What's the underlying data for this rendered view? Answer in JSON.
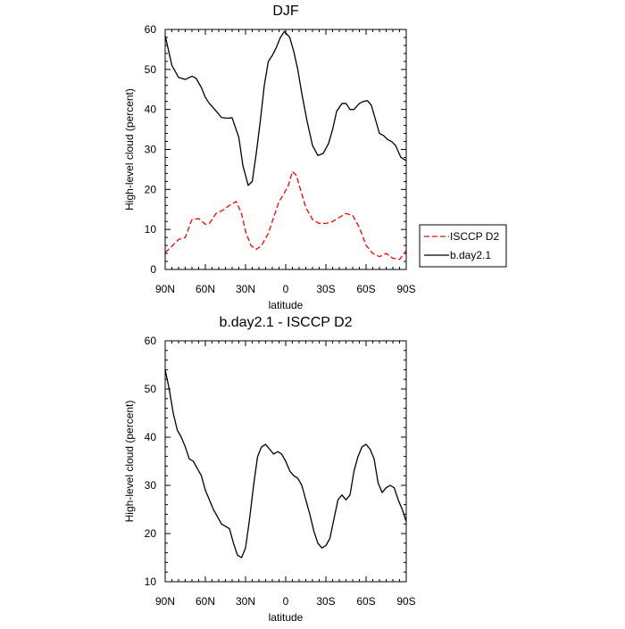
{
  "chart_data": [
    {
      "type": "line",
      "title": "DJF",
      "xlabel": "latitude",
      "ylabel": "High-level cloud (percent)",
      "xlim": [
        90,
        -90
      ],
      "ylim": [
        0,
        60
      ],
      "xtick_values": [
        90,
        60,
        30,
        0,
        -30,
        -60,
        -90
      ],
      "xtick_labels": [
        "90N",
        "60N",
        "30N",
        "0",
        "30S",
        "60S",
        "90S"
      ],
      "ytick_values": [
        0,
        10,
        20,
        30,
        40,
        50,
        60
      ],
      "ytick_labels": [
        "0",
        "10",
        "20",
        "30",
        "40",
        "50",
        "60"
      ],
      "legend_position": "right",
      "series": [
        {
          "name": "ISCCP D2",
          "color": "#ff0000",
          "dash": "dashed",
          "x": [
            90,
            85,
            80,
            75,
            70,
            65,
            60,
            57,
            52,
            47,
            42,
            37,
            33,
            30,
            26,
            22,
            18,
            13,
            9,
            5,
            2,
            -2,
            -5,
            -8,
            -11,
            -15,
            -20,
            -25,
            -30,
            -35,
            -40,
            -45,
            -50,
            -55,
            -60,
            -65,
            -70,
            -75,
            -80,
            -85,
            -90
          ],
          "y": [
            4.2,
            5.8,
            7.5,
            8.0,
            12.5,
            12.7,
            11.3,
            11.5,
            14.0,
            14.8,
            16.0,
            17.0,
            14.0,
            9.5,
            6.0,
            5.0,
            6.0,
            9.0,
            13.0,
            17.0,
            18.5,
            21.0,
            24.5,
            23.5,
            20.0,
            15.5,
            12.5,
            11.5,
            11.5,
            12.0,
            13.0,
            14.0,
            13.5,
            10.5,
            6.0,
            4.0,
            3.2,
            4.0,
            2.8,
            2.5,
            4.7
          ]
        },
        {
          "name": "b.day2.1",
          "color": "#000000",
          "dash": "solid",
          "x": [
            90,
            85,
            80,
            75,
            70,
            67,
            63,
            60,
            57,
            53,
            48,
            44,
            40,
            35,
            32,
            28,
            25,
            22,
            19,
            16,
            13,
            10,
            7,
            4,
            1,
            -3,
            -6,
            -9,
            -12,
            -16,
            -20,
            -24,
            -28,
            -32,
            -35,
            -38,
            -42,
            -45,
            -48,
            -51,
            -55,
            -58,
            -61,
            -64,
            -67,
            -70,
            -73,
            -76,
            -79,
            -82,
            -86,
            -90
          ],
          "y": [
            58.5,
            51.0,
            48.0,
            47.5,
            48.3,
            47.8,
            45.5,
            43.0,
            41.5,
            40.0,
            38.0,
            37.8,
            37.9,
            33.0,
            26.0,
            21.0,
            22.0,
            29.0,
            37.0,
            46.0,
            52.0,
            53.5,
            55.5,
            58.0,
            59.5,
            58.0,
            54.5,
            50.0,
            44.0,
            37.0,
            31.0,
            28.5,
            29.0,
            31.5,
            35.0,
            39.5,
            41.5,
            41.5,
            40.0,
            40.0,
            41.5,
            42.0,
            42.2,
            41.0,
            37.5,
            34.0,
            33.5,
            32.5,
            32.0,
            31.0,
            28.0,
            27.2
          ]
        }
      ]
    },
    {
      "type": "line",
      "title": "b.day2.1 - ISCCP D2",
      "xlabel": "latitude",
      "ylabel": "High-level cloud (percent)",
      "xlim": [
        90,
        -90
      ],
      "ylim": [
        10,
        60
      ],
      "xtick_values": [
        90,
        60,
        30,
        0,
        -30,
        -60,
        -90
      ],
      "xtick_labels": [
        "90N",
        "60N",
        "30N",
        "0",
        "30S",
        "60S",
        "90S"
      ],
      "ytick_values": [
        10,
        20,
        30,
        40,
        50,
        60
      ],
      "ytick_labels": [
        "10",
        "20",
        "30",
        "40",
        "50",
        "60"
      ],
      "series": [
        {
          "name": "b.day2.1 - ISCCP D2",
          "color": "#000000",
          "dash": "solid",
          "x": [
            90,
            87,
            84,
            81,
            78,
            75,
            72,
            69,
            66,
            63,
            60,
            57,
            54,
            51,
            48,
            45,
            42,
            39,
            36,
            33,
            30,
            27,
            24,
            21,
            18,
            15,
            12,
            9,
            6,
            3,
            0,
            -3,
            -6,
            -9,
            -12,
            -15,
            -18,
            -21,
            -24,
            -27,
            -30,
            -33,
            -36,
            -39,
            -42,
            -45,
            -48,
            -51,
            -54,
            -57,
            -60,
            -63,
            -66,
            -69,
            -72,
            -75,
            -78,
            -81,
            -84,
            -87,
            -90
          ],
          "y": [
            54.0,
            50.0,
            45.0,
            41.5,
            40.0,
            38.0,
            35.5,
            35.0,
            33.5,
            32.0,
            29.0,
            27.0,
            25.0,
            23.5,
            22.0,
            21.5,
            21.0,
            18.0,
            15.5,
            15.0,
            17.0,
            23.0,
            30.0,
            36.0,
            38.0,
            38.5,
            37.5,
            36.5,
            37.0,
            36.5,
            35.0,
            33.0,
            32.0,
            31.5,
            30.0,
            27.0,
            24.0,
            20.5,
            18.0,
            17.0,
            17.5,
            19.0,
            23.0,
            27.0,
            28.0,
            27.0,
            28.0,
            33.0,
            36.0,
            38.0,
            38.5,
            37.5,
            35.5,
            30.5,
            28.5,
            29.5,
            30.0,
            29.5,
            27.0,
            25.0,
            22.5
          ]
        }
      ]
    }
  ]
}
